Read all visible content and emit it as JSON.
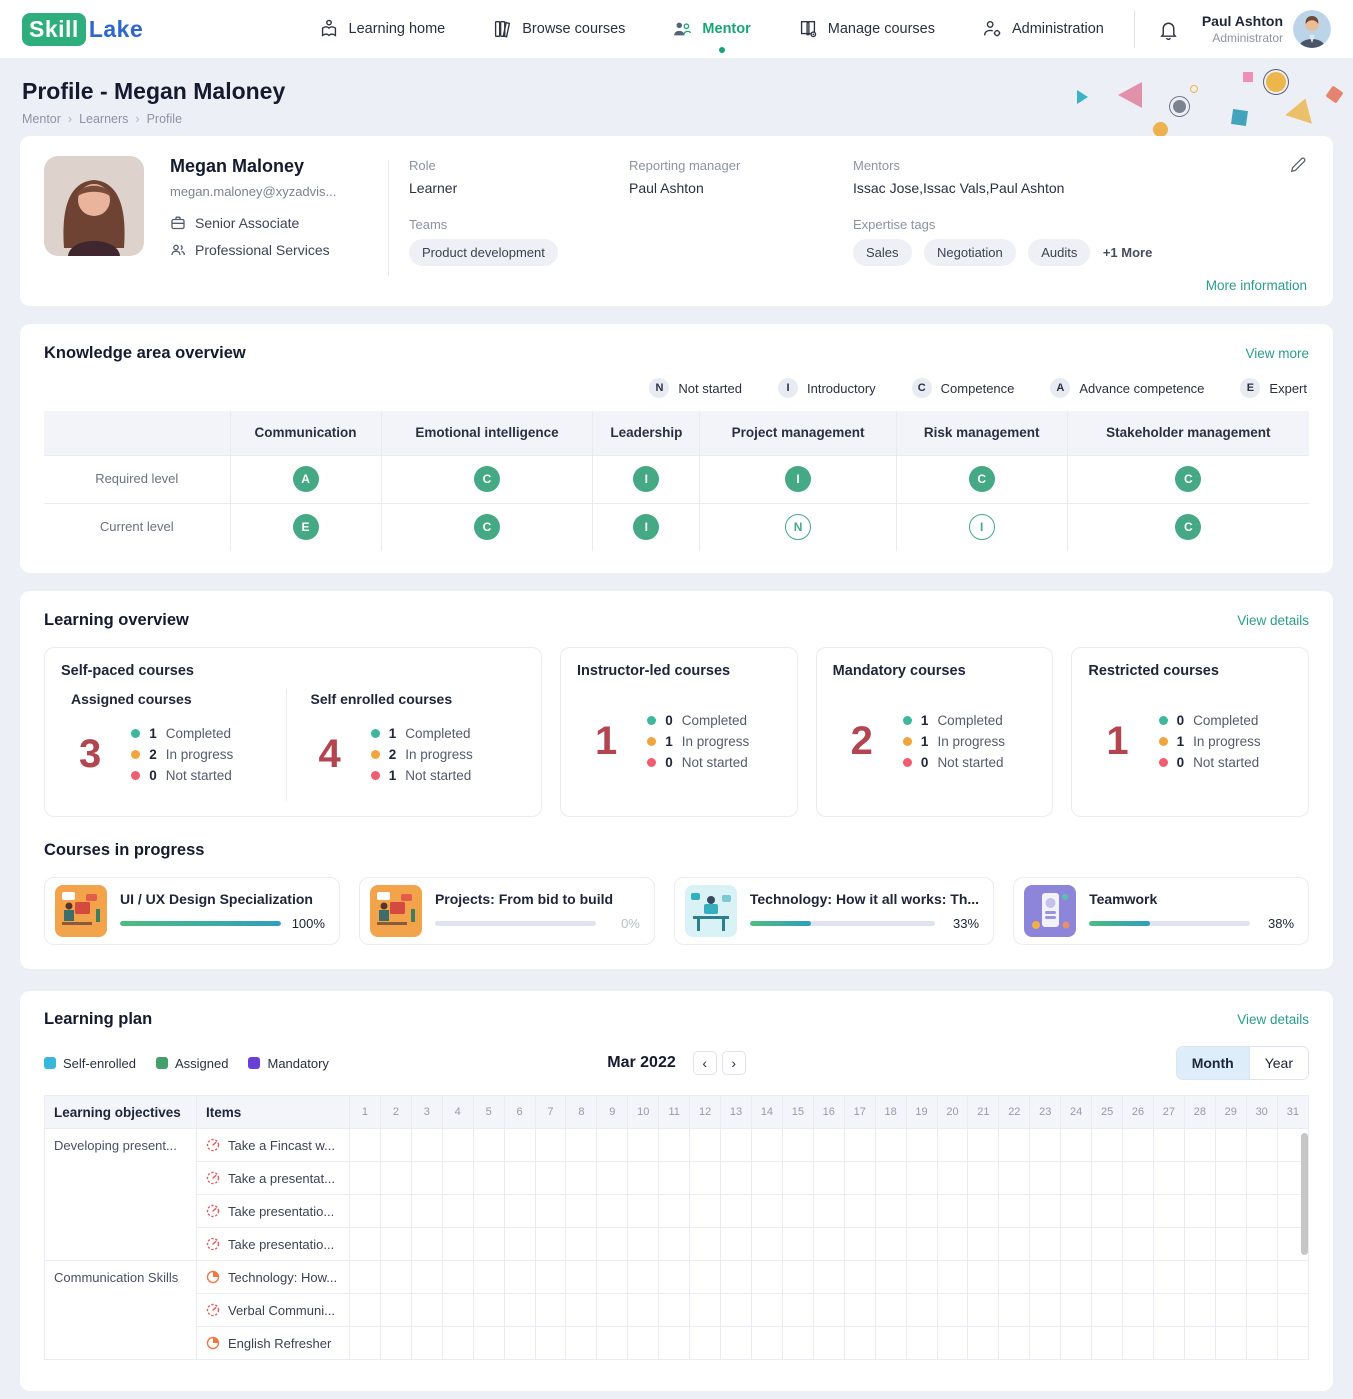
{
  "nav": {
    "logo": {
      "skill": "Skill",
      "lake": "Lake"
    },
    "items": [
      {
        "label": "Learning home"
      },
      {
        "label": "Browse courses"
      },
      {
        "label": "Mentor"
      },
      {
        "label": "Manage courses"
      },
      {
        "label": "Administration"
      }
    ],
    "user": {
      "name": "Paul Ashton",
      "role": "Administrator"
    }
  },
  "page": {
    "title": "Profile - Megan Maloney",
    "breadcrumb": [
      "Mentor",
      "Learners",
      "Profile"
    ]
  },
  "profile": {
    "name": "Megan Maloney",
    "email": "megan.maloney@xyzadvis...",
    "designation": "Senior Associate",
    "department": "Professional Services",
    "role_label": "Role",
    "role": "Learner",
    "teams_label": "Teams",
    "teams": [
      "Product development"
    ],
    "reporting_manager_label": "Reporting manager",
    "reporting_manager": "Paul Ashton",
    "mentors_label": "Mentors",
    "mentors": "Issac Jose,Issac Vals,Paul Ashton",
    "expertise_label": "Expertise tags",
    "expertise_tags": [
      "Sales",
      "Negotiation",
      "Audits"
    ],
    "expertise_more": "+1 More",
    "more_info": "More information"
  },
  "knowledge": {
    "title": "Knowledge area overview",
    "view_more": "View more",
    "legend": [
      {
        "letter": "N",
        "label": "Not started"
      },
      {
        "letter": "I",
        "label": "Introductory"
      },
      {
        "letter": "C",
        "label": "Competence"
      },
      {
        "letter": "A",
        "label": "Advance competence"
      },
      {
        "letter": "E",
        "label": "Expert"
      }
    ],
    "columns": [
      "Communication",
      "Emotional intelligence",
      "Leadership",
      "Project management",
      "Risk management",
      "Stakeholder management"
    ],
    "rows": [
      {
        "label": "Required level",
        "levels": [
          {
            "letter": "A",
            "filled": true
          },
          {
            "letter": "C",
            "filled": true
          },
          {
            "letter": "I",
            "filled": true
          },
          {
            "letter": "I",
            "filled": true
          },
          {
            "letter": "C",
            "filled": true
          },
          {
            "letter": "C",
            "filled": true
          }
        ]
      },
      {
        "label": "Current level",
        "levels": [
          {
            "letter": "E",
            "filled": true
          },
          {
            "letter": "C",
            "filled": true
          },
          {
            "letter": "I",
            "filled": true
          },
          {
            "letter": "N",
            "filled": false
          },
          {
            "letter": "I",
            "filled": false
          },
          {
            "letter": "C",
            "filled": true
          }
        ]
      }
    ],
    "badge_color": "#45a985"
  },
  "learning_overview": {
    "title": "Learning overview",
    "view_details": "View details",
    "dot_colors": [
      "#3eb79b",
      "#f2a53c",
      "#f25c6e"
    ],
    "cards": [
      {
        "title": "Self-paced courses",
        "groups": [
          {
            "name": "Assigned courses",
            "total": "3",
            "stats": [
              {
                "value": "1",
                "label": "Completed"
              },
              {
                "value": "2",
                "label": "In progress"
              },
              {
                "value": "0",
                "label": "Not started"
              }
            ]
          },
          {
            "name": "Self enrolled courses",
            "total": "4",
            "stats": [
              {
                "value": "1",
                "label": "Completed"
              },
              {
                "value": "2",
                "label": "In progress"
              },
              {
                "value": "1",
                "label": "Not started"
              }
            ]
          }
        ]
      },
      {
        "title": "Instructor-led courses",
        "total": "1",
        "stats": [
          {
            "value": "0",
            "label": "Completed"
          },
          {
            "value": "1",
            "label": "In progress"
          },
          {
            "value": "0",
            "label": "Not started"
          }
        ]
      },
      {
        "title": "Mandatory courses",
        "total": "2",
        "stats": [
          {
            "value": "1",
            "label": "Completed"
          },
          {
            "value": "1",
            "label": "In progress"
          },
          {
            "value": "0",
            "label": "Not started"
          }
        ]
      },
      {
        "title": "Restricted courses",
        "total": "1",
        "stats": [
          {
            "value": "0",
            "label": "Completed"
          },
          {
            "value": "1",
            "label": "In progress"
          },
          {
            "value": "0",
            "label": "Not started"
          }
        ]
      }
    ]
  },
  "courses_in_progress": {
    "title": "Courses in progress",
    "courses": [
      {
        "title": "UI / UX Design Specialization",
        "percent": 100,
        "percent_label": "100%",
        "thumb": "orange-desk"
      },
      {
        "title": "Projects: From bid to build",
        "percent": 0,
        "percent_label": "0%",
        "thumb": "orange-desk"
      },
      {
        "title": "Technology: How it all works: Th...",
        "percent": 33,
        "percent_label": "33%",
        "thumb": "teal-desk"
      },
      {
        "title": "Teamwork",
        "percent": 38,
        "percent_label": "38%",
        "thumb": "purple-app"
      }
    ]
  },
  "learning_plan": {
    "title": "Learning plan",
    "view_details": "View details",
    "legend": [
      {
        "label": "Self-enrolled",
        "color": "#38b6dc"
      },
      {
        "label": "Assigned",
        "color": "#44a06b"
      },
      {
        "label": "Mandatory",
        "color": "#6a3fd8"
      }
    ],
    "month": "Mar 2022",
    "prev": "‹",
    "next": "›",
    "view_toggle": {
      "month": "Month",
      "year": "Year",
      "active": "Month"
    },
    "columns": {
      "objectives": "Learning objectives",
      "items": "Items"
    },
    "days": [
      1,
      2,
      3,
      4,
      5,
      6,
      7,
      8,
      9,
      10,
      11,
      12,
      13,
      14,
      15,
      16,
      17,
      18,
      19,
      20,
      21,
      22,
      23,
      24,
      25,
      26,
      27,
      28,
      29,
      30,
      31
    ],
    "groups": [
      {
        "objective": "Developing present...",
        "items": [
          {
            "label": "Take a Fincast w...",
            "icon": "gauge-icon"
          },
          {
            "label": "Take a presentat...",
            "icon": "gauge-icon"
          },
          {
            "label": "Take presentatio...",
            "icon": "gauge-icon"
          },
          {
            "label": "Take presentatio...",
            "icon": "gauge-icon"
          }
        ]
      },
      {
        "objective": "Communication Skills",
        "items": [
          {
            "label": "Technology: How...",
            "icon": "clock-icon"
          },
          {
            "label": "Verbal Communi...",
            "icon": "gauge-icon"
          },
          {
            "label": "English Refresher",
            "icon": "clock-icon"
          }
        ]
      }
    ]
  }
}
